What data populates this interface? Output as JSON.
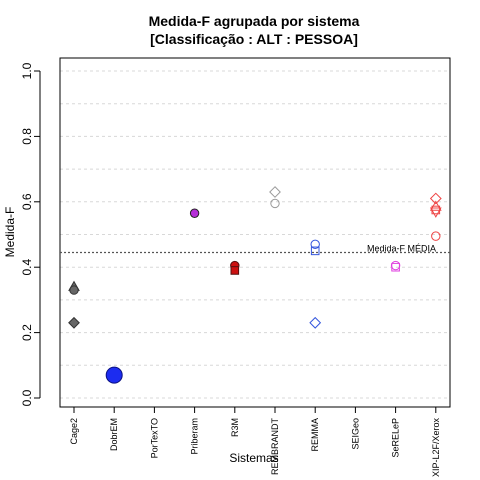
{
  "chart_data": {
    "type": "scatter",
    "title": "Medida-F agrupada por sistema",
    "subtitle": "[Classificação : ALT : PESSOA]",
    "xlabel": "Sistemas",
    "ylabel": "Medida-F",
    "ylim": [
      0,
      1
    ],
    "yticks": [
      "0.0",
      "0.2",
      "0.4",
      "0.6",
      "0.8",
      "1.0"
    ],
    "grid": true,
    "categories": [
      "Cage2",
      "DobrEM",
      "PorTexTO",
      "Priberam",
      "R3M",
      "REMBRANDT",
      "REMMA",
      "SEIGeo",
      "SeRELeP",
      "XIP-L2F/Xerox"
    ],
    "mean": {
      "value": 0.445,
      "label": "Medida-F MÉDIA"
    },
    "points": [
      {
        "category": "Cage2",
        "y": 0.34,
        "shape": "triangle",
        "fill": "#666666",
        "stroke": "#333333"
      },
      {
        "category": "Cage2",
        "y": 0.33,
        "shape": "circle",
        "fill": "#666666",
        "stroke": "#333333"
      },
      {
        "category": "Cage2",
        "y": 0.23,
        "shape": "diamond",
        "fill": "#666666",
        "stroke": "#333333"
      },
      {
        "category": "DobrEM",
        "y": 0.07,
        "shape": "circle-large",
        "fill": "#1c2cf0",
        "stroke": "#0a1080"
      },
      {
        "category": "Priberam",
        "y": 0.565,
        "shape": "circle",
        "fill": "#b52ed8",
        "stroke": "#222222"
      },
      {
        "category": "R3M",
        "y": 0.405,
        "shape": "circle",
        "fill": "#cc1111",
        "stroke": "#551111"
      },
      {
        "category": "R3M",
        "y": 0.39,
        "shape": "square",
        "fill": "#cc1111",
        "stroke": "#551111"
      },
      {
        "category": "REMBRANDT",
        "y": 0.63,
        "shape": "diamond",
        "fill": "none",
        "stroke": "#9a9a9a"
      },
      {
        "category": "REMBRANDT",
        "y": 0.595,
        "shape": "circle",
        "fill": "none",
        "stroke": "#9a9a9a"
      },
      {
        "category": "REMMA",
        "y": 0.47,
        "shape": "circle",
        "fill": "none",
        "stroke": "#3355dd"
      },
      {
        "category": "REMMA",
        "y": 0.45,
        "shape": "square",
        "fill": "none",
        "stroke": "#3355dd"
      },
      {
        "category": "REMMA",
        "y": 0.23,
        "shape": "diamond",
        "fill": "none",
        "stroke": "#3355dd"
      },
      {
        "category": "SeRELeP",
        "y": 0.405,
        "shape": "circle",
        "fill": "none",
        "stroke": "#e040e0"
      },
      {
        "category": "SeRELeP",
        "y": 0.4,
        "shape": "square",
        "fill": "none",
        "stroke": "#e040e0"
      },
      {
        "category": "XIP-L2F/Xerox",
        "y": 0.61,
        "shape": "diamond",
        "fill": "none",
        "stroke": "#ee4444"
      },
      {
        "category": "XIP-L2F/Xerox",
        "y": 0.585,
        "shape": "triangle",
        "fill": "none",
        "stroke": "#ee4444"
      },
      {
        "category": "XIP-L2F/Xerox",
        "y": 0.575,
        "shape": "square",
        "fill": "none",
        "stroke": "#ee4444"
      },
      {
        "category": "XIP-L2F/Xerox",
        "y": 0.57,
        "shape": "triangle-down",
        "fill": "none",
        "stroke": "#ee4444"
      },
      {
        "category": "XIP-L2F/Xerox",
        "y": 0.495,
        "shape": "circle",
        "fill": "none",
        "stroke": "#ee4444"
      }
    ]
  }
}
